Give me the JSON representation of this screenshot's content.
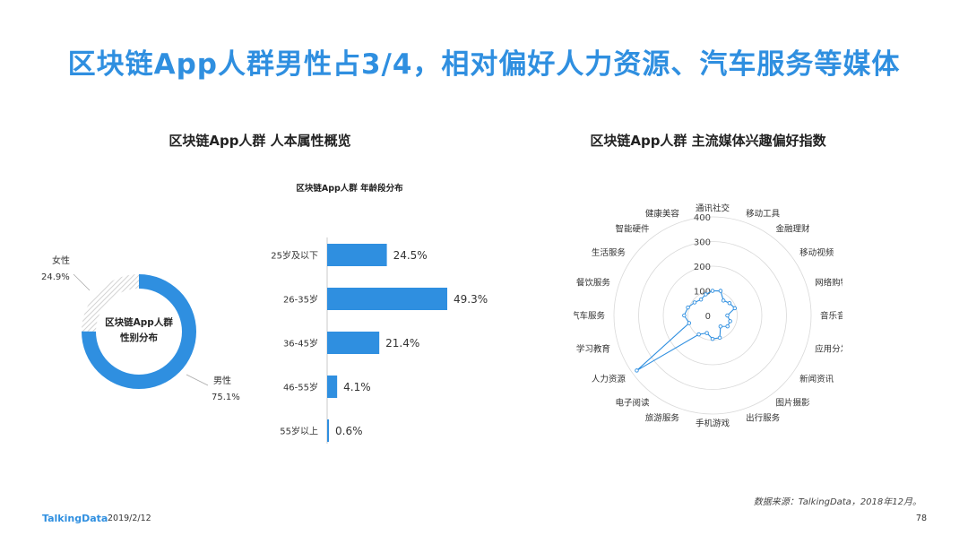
{
  "page": {
    "title": "区块链App人群男性占3/4，相对偏好人力资源、汽车服务等媒体",
    "left_section_title": "区块链App人群  人本属性概览",
    "right_section_title": "区块链App人群  主流媒体兴趣偏好指数",
    "source_note": "数据来源：TalkingData，2018年12月。",
    "footer_brand": "TalkingData",
    "footer_date": "2019/2/12",
    "page_number": "78"
  },
  "colors": {
    "accent": "#2f8fe0",
    "bar": "#2f8fe0",
    "donut_male": "#2f8fe0",
    "donut_female_hatch": "#c8c8c8",
    "grid": "#d9d9d9"
  },
  "chart_data": [
    {
      "type": "pie",
      "variant": "donut",
      "center_label": [
        "区块链App人群",
        "性别分布"
      ],
      "slices": [
        {
          "label": "男性",
          "value": 75.1,
          "display": "75.1%"
        },
        {
          "label": "女性",
          "value": 24.9,
          "display": "24.9%"
        }
      ]
    },
    {
      "type": "bar",
      "orientation": "horizontal",
      "title": "区块链App人群  年龄段分布",
      "categories": [
        "25岁及以下",
        "26-35岁",
        "36-45岁",
        "46-55岁",
        "55岁以上"
      ],
      "values": [
        24.5,
        49.3,
        21.4,
        4.1,
        0.6
      ],
      "value_labels": [
        "24.5%",
        "49.3%",
        "21.4%",
        "4.1%",
        "0.6%"
      ]
    },
    {
      "type": "radar",
      "categories": [
        "通讯社交",
        "移动工具",
        "金融理财",
        "移动视频",
        "网络购物",
        "音乐音频",
        "应用分发",
        "新闻资讯",
        "图片摄影",
        "出行服务",
        "手机游戏",
        "旅游服务",
        "电子阅读",
        "人力资源",
        "学习教育",
        "汽车服务",
        "餐饮服务",
        "生活服务",
        "智能硬件",
        "健康美容"
      ],
      "values": [
        100,
        105,
        75,
        85,
        95,
        60,
        75,
        75,
        55,
        95,
        95,
        75,
        95,
        380,
        100,
        115,
        105,
        90,
        80,
        90
      ],
      "ticks": [
        0,
        100,
        200,
        300,
        400
      ],
      "rlim": [
        0,
        400
      ]
    }
  ]
}
